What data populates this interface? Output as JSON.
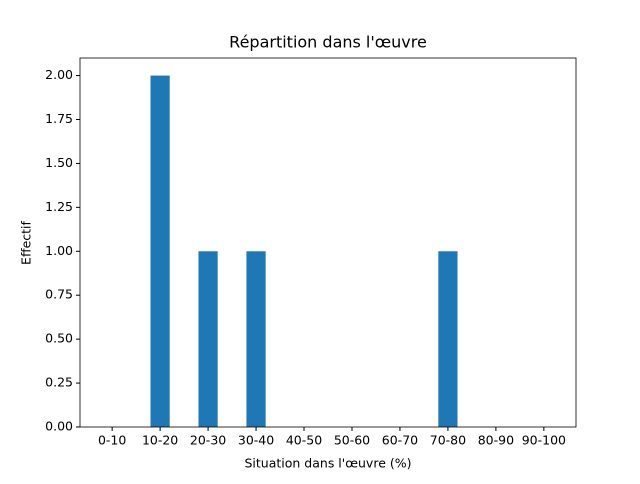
{
  "chart_data": {
    "type": "bar",
    "title": "Répartition dans l'œuvre",
    "xlabel": "Situation dans l'œuvre (%)",
    "ylabel": "Effectif",
    "categories": [
      "0-10",
      "10-20",
      "20-30",
      "30-40",
      "40-50",
      "50-60",
      "60-70",
      "70-80",
      "80-90",
      "90-100"
    ],
    "values": [
      0,
      2,
      1,
      1,
      0,
      0,
      0,
      1,
      0,
      0
    ],
    "color": "#1f77b4",
    "ylim": [
      0,
      2.1
    ],
    "yticks": [
      {
        "value": 0,
        "label": "0.00"
      },
      {
        "value": 0.25,
        "label": "0.25"
      },
      {
        "value": 0.5,
        "label": "0.50"
      },
      {
        "value": 0.75,
        "label": "0.75"
      },
      {
        "value": 1,
        "label": "1.00"
      },
      {
        "value": 1.25,
        "label": "1.25"
      },
      {
        "value": 1.5,
        "label": "1.50"
      },
      {
        "value": 1.75,
        "label": "1.75"
      },
      {
        "value": 2,
        "label": "2.00"
      }
    ],
    "grid": false
  }
}
